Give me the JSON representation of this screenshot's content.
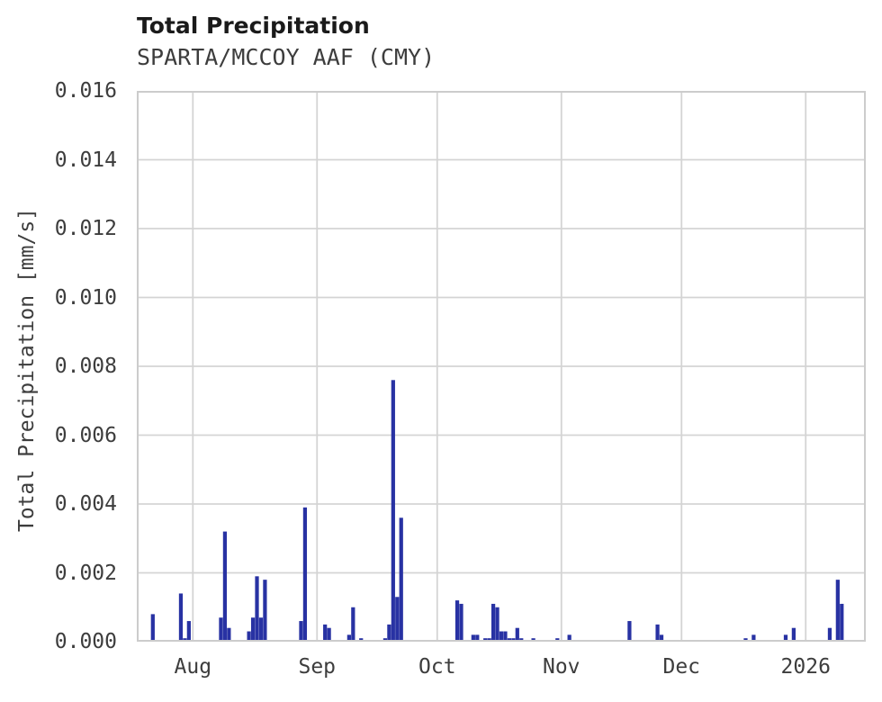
{
  "header": {
    "title": "Total Precipitation",
    "subtitle": "SPARTA/MCCOY AAF (CMY)"
  },
  "chart_data": {
    "type": "bar",
    "title": "Total Precipitation",
    "subtitle": "SPARTA/MCCOY AAF (CMY)",
    "station": "SPARTA/MCCOY AAF (CMY)",
    "xlabel": "",
    "ylabel": "Total Precipitation [mm/s]",
    "ylim": [
      0,
      0.016
    ],
    "ytick_step": 0.002,
    "ytick_labels": [
      "0.000",
      "0.002",
      "0.004",
      "0.006",
      "0.008",
      "0.010",
      "0.012",
      "0.014",
      "0.016"
    ],
    "x_domain": [
      "2025-07-18",
      "2026-01-16"
    ],
    "x_ticks": [
      {
        "label": "Aug",
        "date": "2025-08-01"
      },
      {
        "label": "Sep",
        "date": "2025-09-01"
      },
      {
        "label": "Oct",
        "date": "2025-10-01"
      },
      {
        "label": "Nov",
        "date": "2025-11-01"
      },
      {
        "label": "Dec",
        "date": "2025-12-01"
      },
      {
        "label": "2026",
        "date": "2026-01-01"
      }
    ],
    "grid": true,
    "legend": false,
    "colors": {
      "bar": "#2832a3",
      "grid": "#d4d4d4",
      "border": "#cccccc",
      "title": "#1a1a1a",
      "tick_text": "#3d3d3d",
      "background": "#ffffff"
    },
    "bars": [
      {
        "date": "2025-07-22",
        "value": 0.0008
      },
      {
        "date": "2025-07-29",
        "value": 0.0014
      },
      {
        "date": "2025-07-30",
        "value": 0.0001
      },
      {
        "date": "2025-07-31",
        "value": 0.0006
      },
      {
        "date": "2025-08-08",
        "value": 0.0007
      },
      {
        "date": "2025-08-09",
        "value": 0.0032
      },
      {
        "date": "2025-08-10",
        "value": 0.0004
      },
      {
        "date": "2025-08-15",
        "value": 0.0003
      },
      {
        "date": "2025-08-16",
        "value": 0.0007
      },
      {
        "date": "2025-08-17",
        "value": 0.0019
      },
      {
        "date": "2025-08-18",
        "value": 0.0007
      },
      {
        "date": "2025-08-19",
        "value": 0.0018
      },
      {
        "date": "2025-08-28",
        "value": 0.0006
      },
      {
        "date": "2025-08-29",
        "value": 0.0039
      },
      {
        "date": "2025-09-03",
        "value": 0.0005
      },
      {
        "date": "2025-09-04",
        "value": 0.0004
      },
      {
        "date": "2025-09-09",
        "value": 0.0002
      },
      {
        "date": "2025-09-10",
        "value": 0.001
      },
      {
        "date": "2025-09-12",
        "value": 0.0001
      },
      {
        "date": "2025-09-18",
        "value": 0.0001
      },
      {
        "date": "2025-09-19",
        "value": 0.0005
      },
      {
        "date": "2025-09-20",
        "value": 0.0076
      },
      {
        "date": "2025-09-21",
        "value": 0.0013
      },
      {
        "date": "2025-09-22",
        "value": 0.0036
      },
      {
        "date": "2025-10-06",
        "value": 0.0012
      },
      {
        "date": "2025-10-07",
        "value": 0.0011
      },
      {
        "date": "2025-10-10",
        "value": 0.0002
      },
      {
        "date": "2025-10-11",
        "value": 0.0002
      },
      {
        "date": "2025-10-13",
        "value": 0.0001
      },
      {
        "date": "2025-10-14",
        "value": 0.0001
      },
      {
        "date": "2025-10-15",
        "value": 0.0011
      },
      {
        "date": "2025-10-16",
        "value": 0.001
      },
      {
        "date": "2025-10-17",
        "value": 0.0003
      },
      {
        "date": "2025-10-18",
        "value": 0.0003
      },
      {
        "date": "2025-10-19",
        "value": 0.0001
      },
      {
        "date": "2025-10-20",
        "value": 0.0001
      },
      {
        "date": "2025-10-21",
        "value": 0.0004
      },
      {
        "date": "2025-10-22",
        "value": 0.0001
      },
      {
        "date": "2025-10-25",
        "value": 0.0001
      },
      {
        "date": "2025-10-31",
        "value": 0.0001
      },
      {
        "date": "2025-11-03",
        "value": 0.0002
      },
      {
        "date": "2025-11-18",
        "value": 0.0006
      },
      {
        "date": "2025-11-25",
        "value": 0.0005
      },
      {
        "date": "2025-11-26",
        "value": 0.0002
      },
      {
        "date": "2025-12-17",
        "value": 0.0001
      },
      {
        "date": "2025-12-19",
        "value": 0.0002
      },
      {
        "date": "2025-12-27",
        "value": 0.0002
      },
      {
        "date": "2025-12-29",
        "value": 0.0004
      },
      {
        "date": "2026-01-07",
        "value": 0.0004
      },
      {
        "date": "2026-01-09",
        "value": 0.0018
      },
      {
        "date": "2026-01-10",
        "value": 0.0011
      }
    ]
  }
}
